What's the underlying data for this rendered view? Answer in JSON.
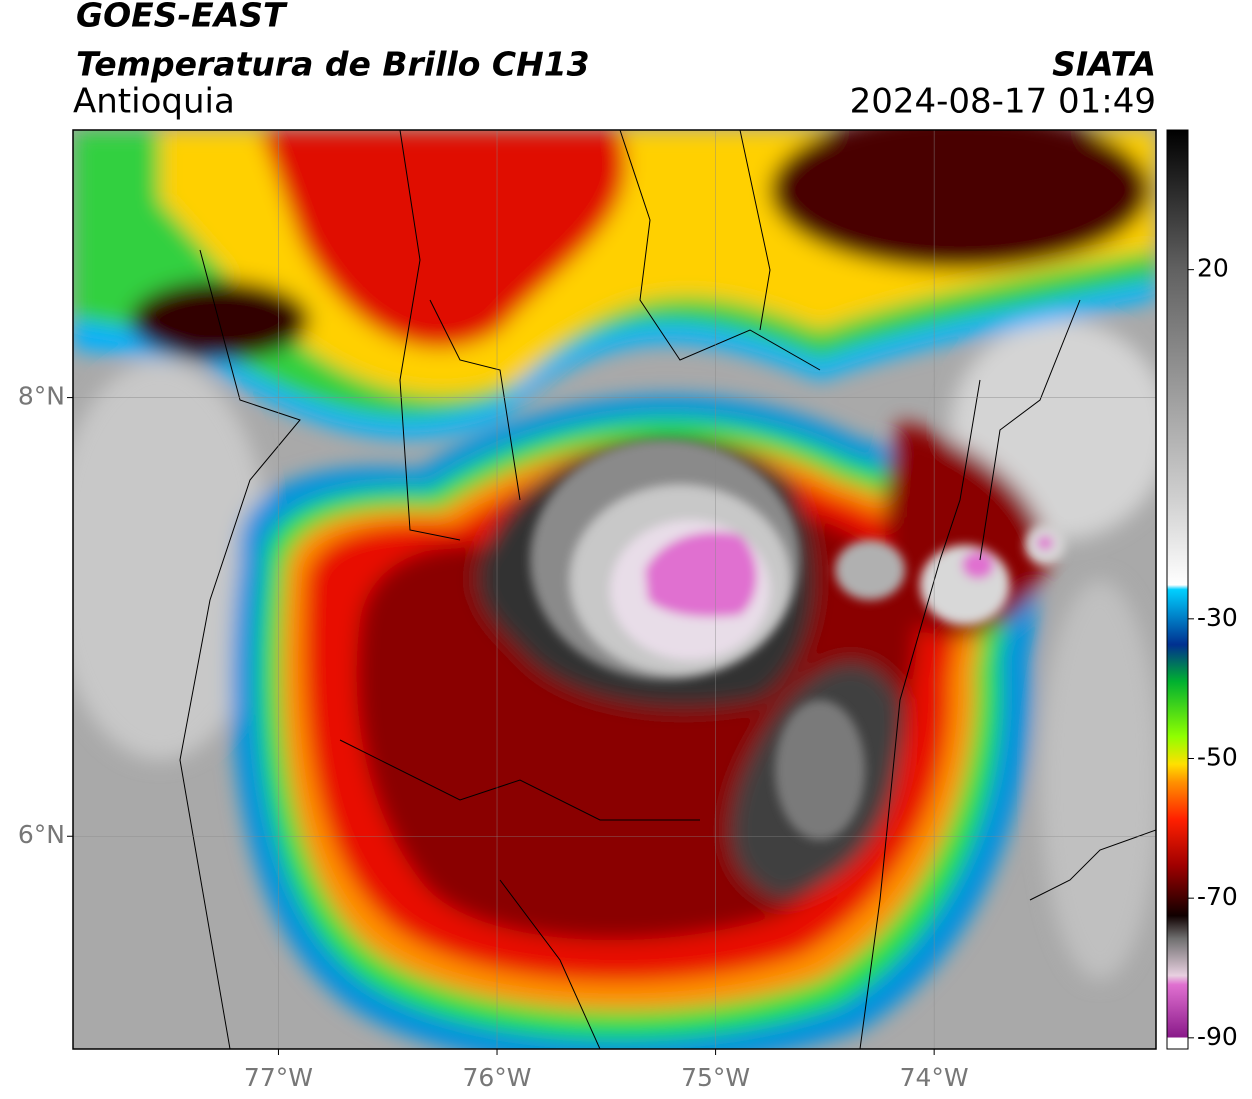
{
  "header": {
    "title": "GOES-EAST",
    "subtitle": "Temperatura de Brillo CH13",
    "region": "Antioquia",
    "source": "SIATA",
    "datetime": "2024-08-17 01:49"
  },
  "map": {
    "xlim": [
      -77.94,
      -72.985
    ],
    "ylim": [
      5.03,
      9.22
    ],
    "xticks": [
      {
        "value": -77,
        "label": "77°W"
      },
      {
        "value": -76,
        "label": "76°W"
      },
      {
        "value": -75,
        "label": "75°W"
      },
      {
        "value": -74,
        "label": "74°W"
      }
    ],
    "yticks": [
      {
        "value": 8,
        "label": "8°N"
      },
      {
        "value": 6,
        "label": "6°N"
      }
    ],
    "grid": true
  },
  "colorbar": {
    "lim": [
      -91.6,
      40
    ],
    "ticks": [
      20,
      -30,
      -50,
      -70,
      -90
    ]
  }
}
